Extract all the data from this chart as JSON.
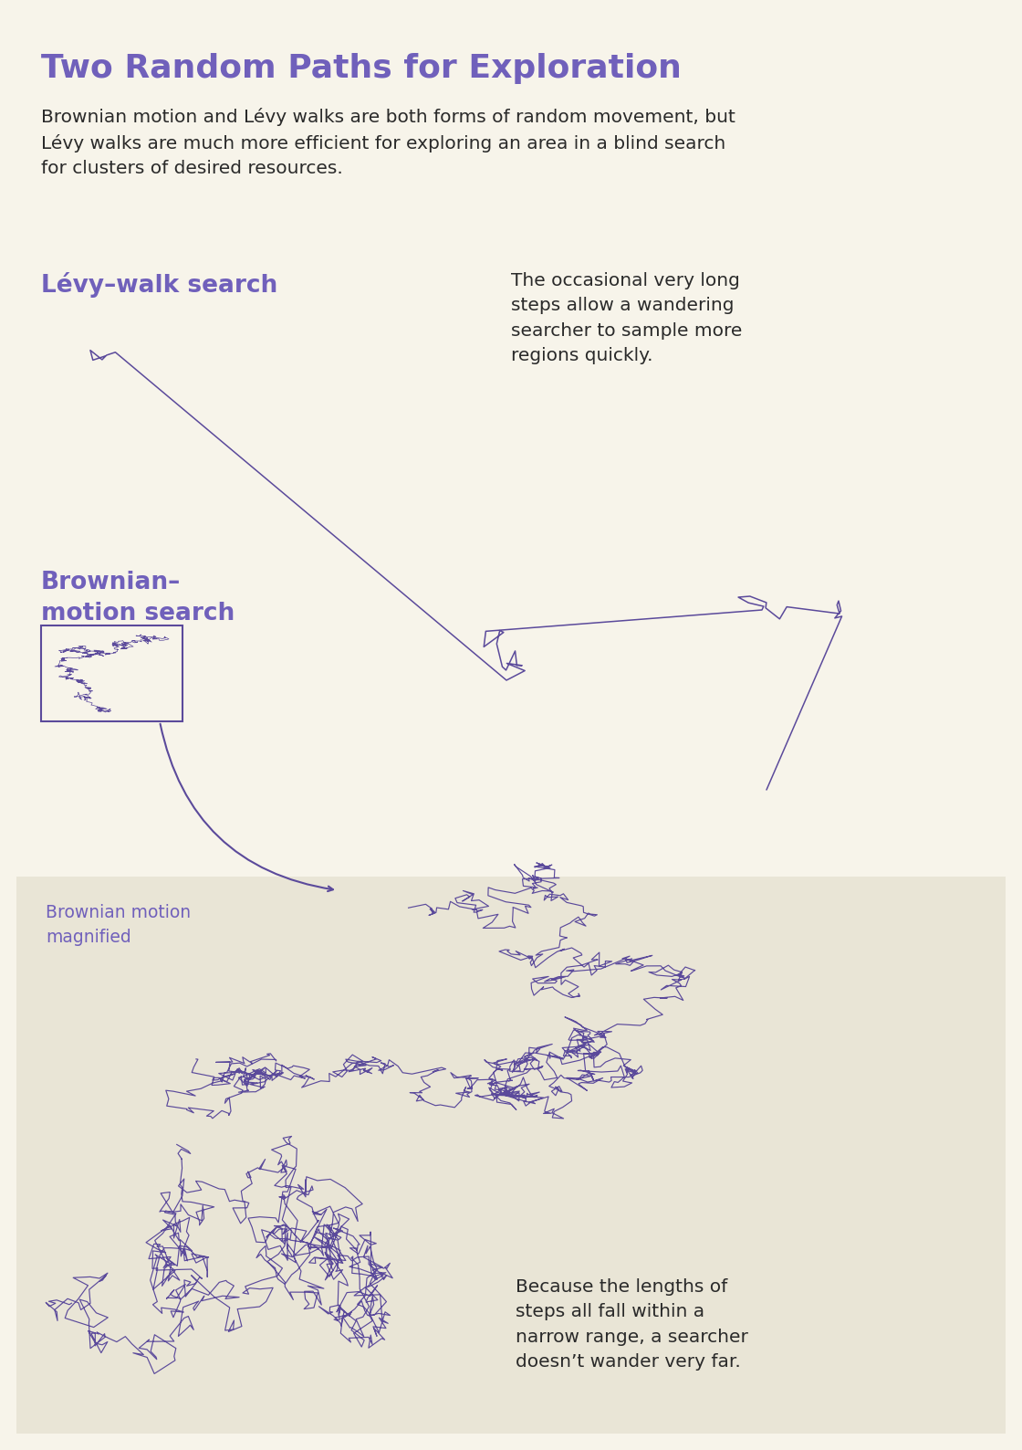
{
  "title": "Two Random Paths for Exploration",
  "subtitle": "Brownian motion and Lévy walks are both forms of random movement, but\nLévy walks are much more efficient for exploring an area in a blind search\nfor clusters of desired resources.",
  "levy_label": "Lévy–walk search",
  "brownian_label": "Brownian–\nmotion search",
  "levy_annotation": "The occasional very long\nsteps allow a wandering\nsearcher to sample more\nregions quickly.",
  "brownian_annotation": "Because the lengths of\nsteps all fall within a\nnarrow range, a searcher\ndoesn’t wander very far.",
  "brownian_magnified_label": "Brownian motion\nmagnified",
  "bg_color": "#f7f4ea",
  "bg_color_bottom": "#e9e5d6",
  "path_color": "#5b4a9b",
  "text_color_dark": "#2a2a2a",
  "title_color": "#7060bb",
  "label_color": "#7060bb"
}
